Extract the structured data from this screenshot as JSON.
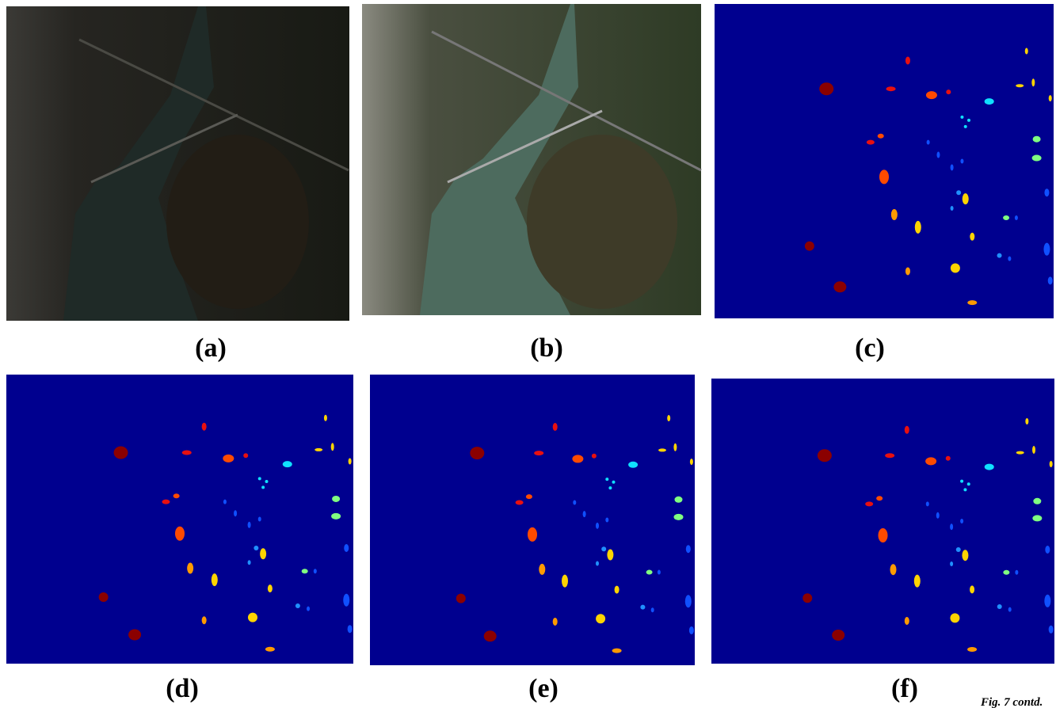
{
  "panels": [
    {
      "label": "(a)"
    },
    {
      "label": "(b)"
    },
    {
      "label": "(c)"
    },
    {
      "label": "(d)"
    },
    {
      "label": "(e)"
    },
    {
      "label": "(f)"
    }
  ],
  "caption": "Fig. 7 contd."
}
